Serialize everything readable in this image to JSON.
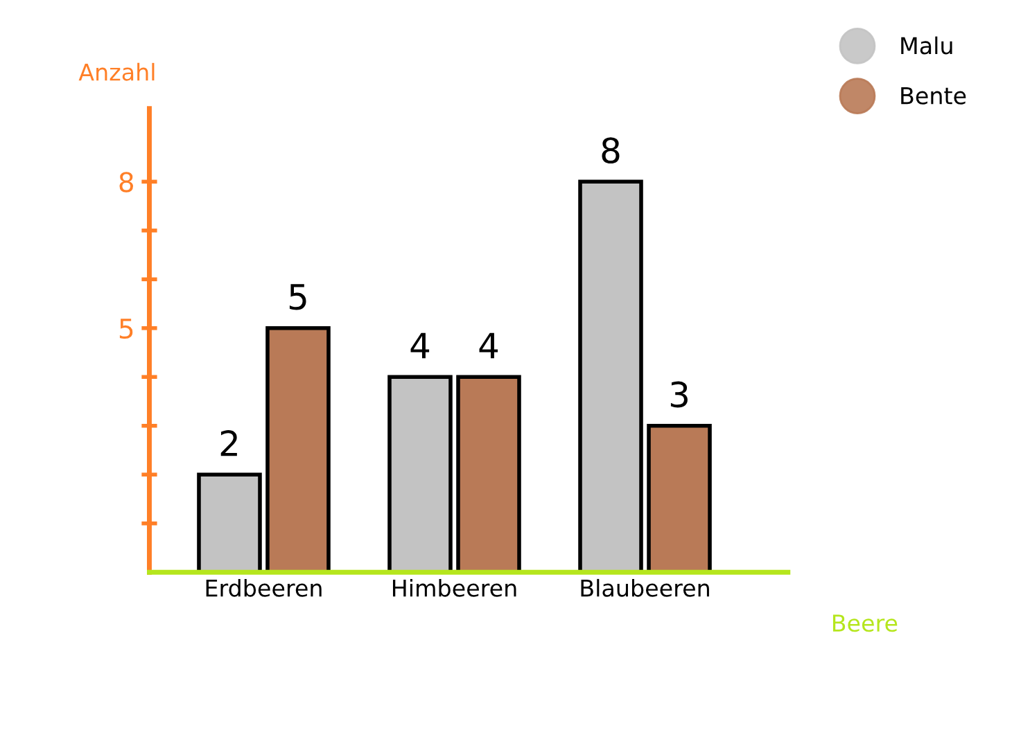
{
  "chart_data": {
    "type": "bar",
    "xlabel": "Beere",
    "ylabel": "Anzahl",
    "categories": [
      "Erdbeeren",
      "Himbeeren",
      "Blaubeeren"
    ],
    "series": [
      {
        "name": "Malu",
        "color": "#c3c3c3",
        "values": [
          2,
          4,
          8
        ]
      },
      {
        "name": "Bente",
        "color": "#b97a57",
        "values": [
          5,
          4,
          3
        ]
      }
    ],
    "ylim": [
      0,
      9.5
    ],
    "yticks": [
      {
        "value": 1,
        "label": null
      },
      {
        "value": 2,
        "label": null
      },
      {
        "value": 3,
        "label": null
      },
      {
        "value": 4,
        "label": null
      },
      5,
      {
        "value": 6,
        "label": null
      },
      {
        "value": 7,
        "label": null
      },
      8
    ],
    "data_labels": true,
    "legend": "top right",
    "grid": false
  }
}
